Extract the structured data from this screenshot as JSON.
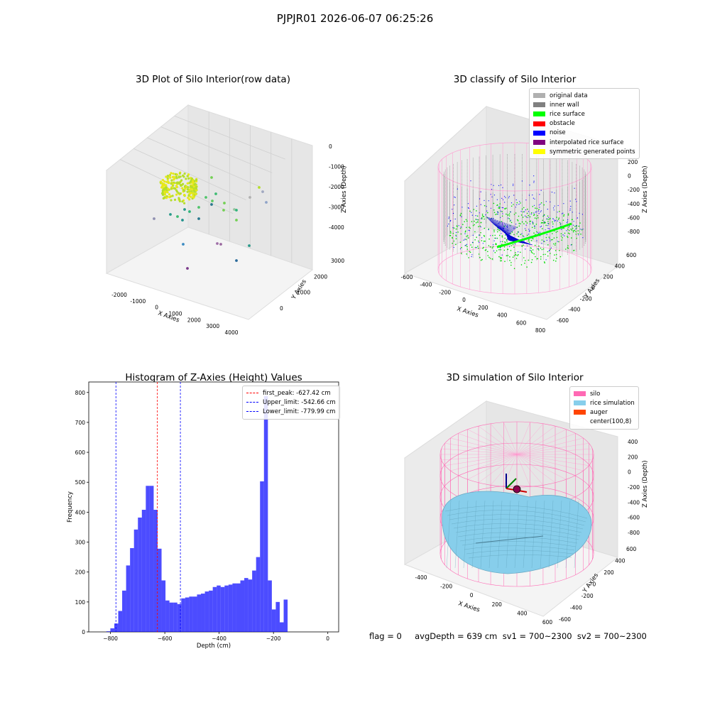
{
  "suptitle": "PJPJR01 2026-06-07 06:25:26",
  "panel1": {
    "title": "3D Plot of Silo Interior(row data)",
    "xlabel": "X Axies",
    "ylabel": "Y Axies",
    "zlabel": "Z Axies (Depth)",
    "xticks": [
      "-2000",
      "-1000",
      "0",
      "1000",
      "2000",
      "3000",
      "4000"
    ],
    "yticks": [
      "0",
      "1000",
      "2000",
      "3000"
    ],
    "zticks": [
      "0",
      "-1000",
      "-2000",
      "-3000",
      "-4000"
    ]
  },
  "panel2": {
    "title": "3D classify of Silo Interior",
    "xlabel": "X Axies",
    "ylabel": "Y Axies",
    "zlabel": "Z Axies (Depth)",
    "xticks": [
      "-600",
      "-400",
      "-200",
      "0",
      "200",
      "400",
      "600",
      "800"
    ],
    "yticks": [
      "-600",
      "-400",
      "-200",
      "0",
      "200",
      "400",
      "600"
    ],
    "zticks": [
      "200",
      "0",
      "-200",
      "-400",
      "-600",
      "-800"
    ],
    "legend": [
      {
        "label": "original data",
        "color": "#b0b0b0"
      },
      {
        "label": "inner wall",
        "color": "#808080"
      },
      {
        "label": "rice surface",
        "color": "#00ff00"
      },
      {
        "label": "obstacle",
        "color": "#ff0000"
      },
      {
        "label": "noise",
        "color": "#0000ff"
      },
      {
        "label": "interpolated rice surface",
        "color": "#800080"
      },
      {
        "label": "symmetric generated points",
        "color": "#ffff00"
      }
    ]
  },
  "panel3": {
    "title": "Histogram of Z-Axies (Height) Values",
    "legend": [
      {
        "label": "first_peak: -627.42 cm",
        "color": "#ff0000"
      },
      {
        "label": "Upper_limit: -542.66 cm",
        "color": "#0000ff"
      },
      {
        "label": "Lower_limit: -779.99 cm",
        "color": "#0000ff"
      }
    ]
  },
  "panel4": {
    "title": "3D simulation of Silo Interior",
    "xlabel": "X Axies",
    "ylabel": "Y Axies",
    "zlabel": "Z Axies (Depth)",
    "xticks": [
      "-400",
      "-200",
      "0",
      "200",
      "400",
      "600"
    ],
    "yticks": [
      "-600",
      "-400",
      "-200",
      "0",
      "200",
      "400",
      "600"
    ],
    "zticks": [
      "400",
      "200",
      "0",
      "-200",
      "-400",
      "-600",
      "-800"
    ],
    "legend": [
      {
        "label": "silo",
        "color": "#ff69b4"
      },
      {
        "label": "rice simulation",
        "color": "#87ceeb"
      },
      {
        "label": "auger",
        "color": "#ff4500"
      },
      {
        "label": "center(100,8)",
        "color": "#ffffff"
      }
    ]
  },
  "status": {
    "text": "flag = 0     avgDepth = 639 cm  sv1 = 700~2300  sv2 = 700~2300"
  },
  "chart_data": [
    {
      "type": "bar",
      "title": "Histogram of Z-Axies (Height) Values",
      "xlabel": "Depth (cm)",
      "ylabel": "Frequency",
      "xlim": [
        -880,
        40
      ],
      "ylim": [
        0,
        835
      ],
      "xticks": [
        -800,
        -600,
        -400,
        -200,
        0
      ],
      "yticks": [
        0,
        100,
        200,
        300,
        400,
        500,
        600,
        700,
        800
      ],
      "bin_edges_start": -815,
      "bin_width": 14.5,
      "values": [
        2,
        12,
        28,
        70,
        138,
        222,
        280,
        342,
        382,
        408,
        488,
        488,
        408,
        278,
        172,
        105,
        98,
        98,
        93,
        112,
        115,
        118,
        118,
        125,
        128,
        135,
        138,
        150,
        155,
        150,
        155,
        158,
        162,
        162,
        172,
        180,
        175,
        205,
        250,
        503,
        788,
        172,
        75,
        100,
        32,
        108
      ],
      "color": "#0000ff",
      "vlines": [
        {
          "name": "first_peak",
          "x": -627.42,
          "color": "#ff0000"
        },
        {
          "name": "Upper_limit",
          "x": -542.66,
          "color": "#0000ff"
        },
        {
          "name": "Lower_limit",
          "x": -779.99,
          "color": "#0000ff"
        }
      ]
    }
  ]
}
